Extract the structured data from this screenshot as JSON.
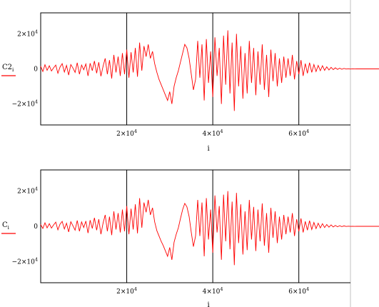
{
  "colors": {
    "trace": "#ff0000",
    "frame": "#000000",
    "divider": "#c0c0c0",
    "background": "#ffffff"
  },
  "chart_data": [
    {
      "type": "line",
      "series_label": {
        "base": "C2",
        "subscript": "i"
      },
      "xlabel": "i",
      "xlim": [
        0,
        72000
      ],
      "ylim": [
        -32000,
        32000
      ],
      "x_gridlines": [
        20000,
        40000,
        60000
      ],
      "grid": "vertical lines at x ticks",
      "x_ticks": [
        {
          "value": 20000,
          "base": "2×10",
          "exp": "4"
        },
        {
          "value": 40000,
          "base": "4×10",
          "exp": "4"
        },
        {
          "value": 60000,
          "base": "6×10",
          "exp": "4"
        }
      ],
      "y_ticks": [
        {
          "value": 20000,
          "base": "2×10",
          "exp": "4"
        },
        {
          "value": 0,
          "base": "0",
          "exp": ""
        },
        {
          "value": -20000,
          "base": "−2×10",
          "exp": "4"
        }
      ],
      "series": [
        {
          "color": "#ff0000",
          "sample_step": 500,
          "x_start": 0,
          "y": [
            1500,
            -1500,
            2400,
            -800,
            1800,
            -1200,
            600,
            2200,
            -2500,
            1000,
            3000,
            -1800,
            2000,
            -3500,
            2500,
            500,
            -2000,
            3500,
            -3000,
            2200,
            -500,
            2800,
            -4000,
            3200,
            -1000,
            4500,
            -2500,
            3800,
            -4200,
            1500,
            6000,
            -3000,
            5000,
            -5500,
            8000,
            -2000,
            7000,
            -4000,
            9000,
            -3000,
            11000,
            -5000,
            9500,
            -2000,
            12000,
            -4500,
            15000,
            -1000,
            13000,
            7000,
            14000,
            6000,
            10000,
            3000,
            -2000,
            -6000,
            -9000,
            -12000,
            -15000,
            -18000,
            -13000,
            -20000,
            -10000,
            -5000,
            -1000,
            4000,
            9000,
            14000,
            12000,
            6000,
            -3000,
            -12000,
            -6000,
            16000,
            -5000,
            14000,
            -18000,
            17000,
            -8000,
            10000,
            -16000,
            18000,
            -4000,
            12000,
            -20000,
            19000,
            -9000,
            22000,
            -14000,
            15000,
            -24000,
            20000,
            -10000,
            13000,
            -17000,
            9000,
            -14000,
            16000,
            -8000,
            12000,
            -15000,
            10000,
            -9000,
            14000,
            -12000,
            8000,
            -16000,
            11000,
            -7000,
            9000,
            -10000,
            6000,
            -8000,
            7000,
            -5000,
            6000,
            -4000,
            8000,
            -6000,
            4500,
            -3000,
            5000,
            -4000,
            3000,
            -2500,
            3500,
            -2000,
            2500,
            -1500,
            2000,
            -1000,
            1800,
            -800,
            1200,
            -600,
            900,
            -400,
            600,
            -300,
            400,
            -200,
            300,
            -100,
            100,
            -80,
            60,
            -40,
            30,
            -20,
            15,
            -10,
            10,
            -5,
            5,
            -3,
            3,
            -2,
            2,
            -1,
            1,
            0
          ]
        }
      ]
    },
    {
      "type": "line",
      "series_label": {
        "base": "C",
        "subscript": "i"
      },
      "xlabel": "i",
      "xlim": [
        0,
        72000
      ],
      "ylim": [
        -32000,
        32000
      ],
      "x_gridlines": [
        20000,
        40000,
        60000
      ],
      "grid": "vertical lines at x ticks",
      "x_ticks": [
        {
          "value": 20000,
          "base": "2×10",
          "exp": "4"
        },
        {
          "value": 40000,
          "base": "4×10",
          "exp": "4"
        },
        {
          "value": 60000,
          "base": "6×10",
          "exp": "4"
        }
      ],
      "y_ticks": [
        {
          "value": 20000,
          "base": "2×10",
          "exp": "4"
        },
        {
          "value": 0,
          "base": "0",
          "exp": ""
        },
        {
          "value": -20000,
          "base": "−2×10",
          "exp": "4"
        }
      ],
      "series": [
        {
          "color": "#ff0000",
          "sample_step": 500,
          "x_start": 0,
          "y": [
            1000,
            -1200,
            2000,
            -900,
            1500,
            -1000,
            800,
            2400,
            -2000,
            1200,
            2800,
            -1500,
            1800,
            -3200,
            2600,
            300,
            -2200,
            3300,
            -2800,
            2500,
            -700,
            3000,
            -3800,
            3500,
            -1200,
            4800,
            -2200,
            4000,
            -4500,
            1800,
            6500,
            -2800,
            5500,
            -5000,
            8500,
            -1800,
            7500,
            -3500,
            9500,
            -2800,
            11500,
            -4500,
            10000,
            -1800,
            12500,
            -4000,
            16000,
            -800,
            13500,
            8000,
            15000,
            6500,
            10500,
            2500,
            -2500,
            -5500,
            -8500,
            -11000,
            -14000,
            -17000,
            -12000,
            -19000,
            -9000,
            -4500,
            -800,
            4500,
            9500,
            13000,
            11000,
            5500,
            -3500,
            -11500,
            -5500,
            15000,
            -5500,
            13500,
            -17000,
            16000,
            -7500,
            9500,
            -15000,
            17500,
            -3500,
            11500,
            -19000,
            18000,
            -8500,
            20000,
            -13000,
            14000,
            -22000,
            19000,
            -9500,
            12500,
            -16000,
            8500,
            -13500,
            15000,
            -7500,
            11000,
            -14000,
            9500,
            -8500,
            13000,
            -11000,
            7500,
            -15000,
            10500,
            -6500,
            8500,
            -9500,
            5500,
            -7500,
            6500,
            -4500,
            5500,
            -3500,
            7500,
            -5500,
            4000,
            -2800,
            4500,
            -3500,
            2800,
            -2200,
            3200,
            -1800,
            2200,
            -1300,
            1800,
            -900,
            1500,
            -700,
            1000,
            -500,
            800,
            -350,
            500,
            -250,
            350,
            -150,
            250,
            -80,
            80,
            -60,
            50,
            -30,
            25,
            -15,
            12,
            -8,
            8,
            -4,
            4,
            -2,
            2,
            -1,
            1,
            0,
            0
          ]
        }
      ]
    }
  ]
}
